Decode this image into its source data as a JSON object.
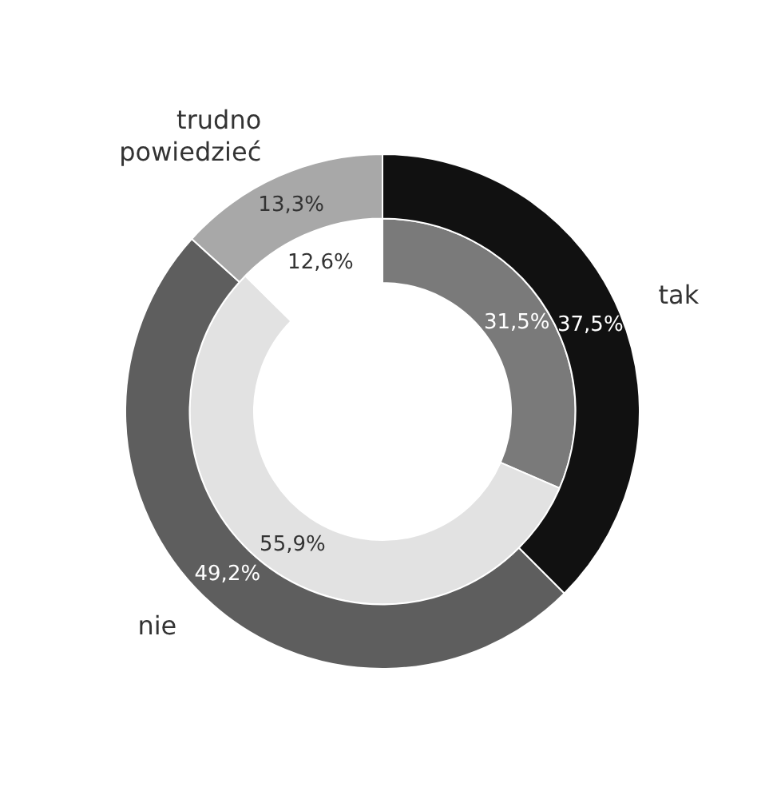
{
  "chart_data": {
    "type": "donut",
    "categories": [
      "tak",
      "nie",
      "trudno powiedzieć"
    ],
    "series": [
      {
        "values": [
          37.5,
          49.2,
          13.3
        ],
        "colors": [
          "#111111",
          "#5e5e5e",
          "#a8a8a8"
        ],
        "value_labels": [
          "37,5%",
          "49,2%",
          "13,3%"
        ]
      },
      {
        "values": [
          31.5,
          55.9,
          12.6
        ],
        "colors": [
          "#7a7a7a",
          "#e2e2e2",
          "#ffffff"
        ],
        "value_labels": [
          "31,5%",
          "55,9%",
          "12,6%"
        ]
      }
    ],
    "legend": false
  }
}
